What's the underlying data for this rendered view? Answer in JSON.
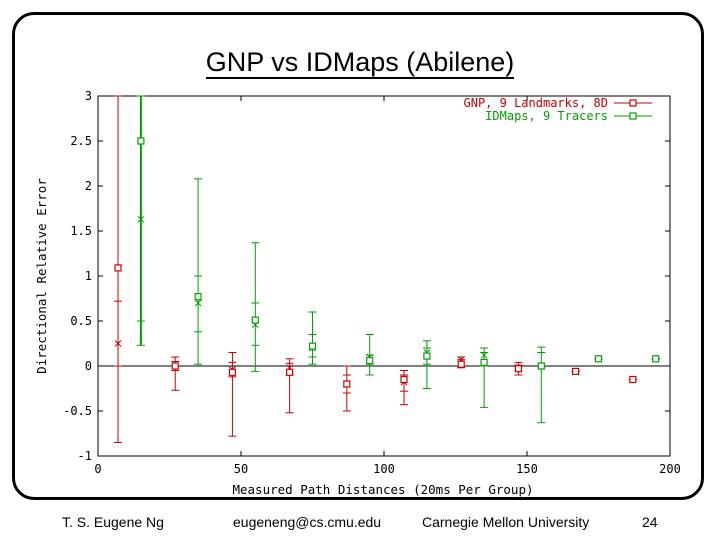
{
  "slide": {
    "title": "GNP vs IDMaps (Abilene)",
    "footer": {
      "author": "T. S. Eugene Ng",
      "email": "eugeneng@cs.cmu.edu",
      "affiliation": "Carnegie Mellon University",
      "page": "24"
    }
  },
  "chart_data": {
    "type": "scatter",
    "title": "",
    "xlabel": "Measured Path Distances (20ms Per Group)",
    "ylabel": "Directional Relative Error",
    "xlim": [
      0,
      200
    ],
    "ylim": [
      -1,
      3
    ],
    "x_ticks": [
      "0",
      "50",
      "100",
      "150",
      "200"
    ],
    "y_ticks": [
      "-1",
      "-0.5",
      "0",
      "0.5",
      "1",
      "1.5",
      "2",
      "2.5",
      "3"
    ],
    "grid": false,
    "zero_line": true,
    "legend_position": "top-right",
    "series": [
      {
        "name": "GNP, 9 Landmarks, 8D",
        "color": "#cc0000",
        "points": [
          {
            "x": 7,
            "mean": 1.09,
            "median": 0.25,
            "lo": -0.85,
            "hi": 3.0,
            "p25": 0.0,
            "p75": 0.72
          },
          {
            "x": 27,
            "mean": 0.0,
            "median": 0.0,
            "lo": -0.27,
            "hi": 0.1,
            "p25": -0.05,
            "p75": 0.05
          },
          {
            "x": 47,
            "mean": -0.07,
            "median": -0.04,
            "lo": -0.78,
            "hi": 0.15,
            "p25": -0.12,
            "p75": 0.04
          },
          {
            "x": 67,
            "mean": -0.07,
            "median": -0.02,
            "lo": -0.52,
            "hi": 0.08,
            "p25": -0.1,
            "p75": 0.03
          },
          {
            "x": 87,
            "mean": -0.2,
            "median": -0.2,
            "lo": -0.5,
            "hi": 0.0,
            "p25": -0.3,
            "p75": -0.1
          },
          {
            "x": 107,
            "mean": -0.15,
            "median": -0.18,
            "lo": -0.43,
            "hi": -0.05,
            "p25": -0.28,
            "p75": -0.1
          },
          {
            "x": 127,
            "mean": 0.02,
            "median": 0.07,
            "lo": -0.02,
            "hi": 0.1,
            "p25": 0.0,
            "p75": 0.07
          },
          {
            "x": 147,
            "mean": -0.03,
            "median": -0.02,
            "lo": -0.1,
            "hi": 0.04,
            "p25": -0.05,
            "p75": 0.01
          },
          {
            "x": 167,
            "mean": -0.06,
            "median": -0.06,
            "lo": -0.06,
            "hi": -0.06,
            "p25": -0.06,
            "p75": -0.06
          },
          {
            "x": 187,
            "mean": -0.15,
            "median": -0.15,
            "lo": -0.15,
            "hi": -0.15,
            "p25": -0.15,
            "p75": -0.15
          }
        ]
      },
      {
        "name": "IDMaps, 9 Tracers",
        "color": "#00a000",
        "points": [
          {
            "x": 15,
            "mean": 2.5,
            "median": 1.63,
            "lo": 0.23,
            "hi": 3.0,
            "p25": 0.5,
            "p75": 3.0
          },
          {
            "x": 35,
            "mean": 0.77,
            "median": 0.7,
            "lo": 0.02,
            "hi": 2.08,
            "p25": 0.38,
            "p75": 1.0
          },
          {
            "x": 55,
            "mean": 0.51,
            "median": 0.46,
            "lo": -0.06,
            "hi": 1.37,
            "p25": 0.23,
            "p75": 0.7
          },
          {
            "x": 75,
            "mean": 0.22,
            "median": 0.2,
            "lo": 0.02,
            "hi": 0.6,
            "p25": 0.1,
            "p75": 0.35
          },
          {
            "x": 95,
            "mean": 0.06,
            "median": 0.1,
            "lo": -0.1,
            "hi": 0.35,
            "p25": 0.02,
            "p75": 0.12
          },
          {
            "x": 115,
            "mean": 0.11,
            "median": 0.15,
            "lo": -0.25,
            "hi": 0.28,
            "p25": 0.02,
            "p75": 0.2
          },
          {
            "x": 135,
            "mean": 0.04,
            "median": 0.12,
            "lo": -0.46,
            "hi": 0.2,
            "p25": 0.0,
            "p75": 0.15
          },
          {
            "x": 155,
            "mean": 0.0,
            "median": 0.0,
            "lo": -0.63,
            "hi": 0.21,
            "p25": -0.02,
            "p75": 0.15
          },
          {
            "x": 175,
            "mean": 0.08,
            "median": 0.08,
            "lo": 0.08,
            "hi": 0.08,
            "p25": 0.08,
            "p75": 0.08
          },
          {
            "x": 195,
            "mean": 0.08,
            "median": 0.08,
            "lo": 0.08,
            "hi": 0.08,
            "p25": 0.08,
            "p75": 0.08
          }
        ]
      }
    ]
  }
}
